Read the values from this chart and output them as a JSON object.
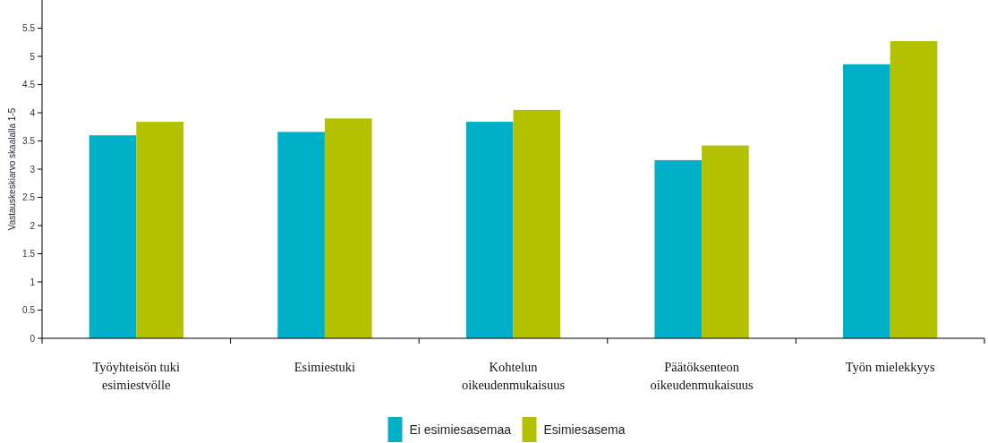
{
  "chart_data": {
    "type": "bar",
    "ylabel": "Vastauskeskiarvo skaalalla 1-5",
    "categories": [
      "Työyhteisön tuki esimiestvölle",
      "Esimiestuki",
      "Kohtelun oikeudenmukaisuus",
      "Päätöksenteon oikeudenmukaisuus",
      "Työn mielekkyys"
    ],
    "series": [
      {
        "name": "Ei esimiesasemaa",
        "color": "#00afc8",
        "values": [
          3.6,
          3.66,
          3.84,
          3.16,
          4.86
        ]
      },
      {
        "name": "Esimiesasema",
        "color": "#b4c100",
        "values": [
          3.84,
          3.9,
          4.05,
          3.42,
          5.27
        ]
      }
    ],
    "ylim": [
      0,
      6
    ],
    "yticks": [
      0,
      0.5,
      1,
      1.5,
      2,
      2.5,
      3,
      3.5,
      4,
      4.5,
      5,
      5.5
    ],
    "grid": false,
    "legend": "bottom"
  }
}
